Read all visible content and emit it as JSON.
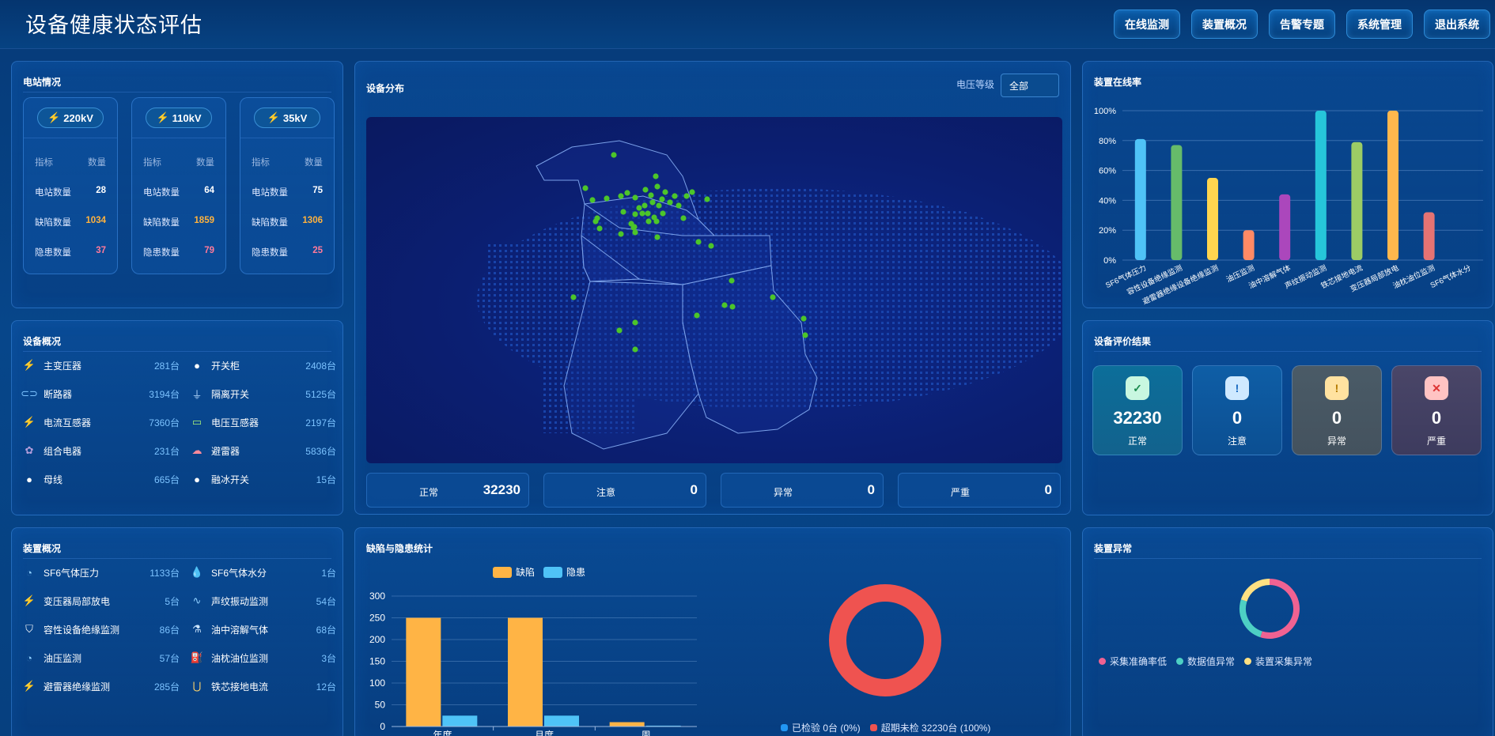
{
  "header": {
    "title": "设备健康状态评估",
    "nav": [
      "在线监测",
      "装置概况",
      "告警专题",
      "系统管理",
      "退出系统"
    ]
  },
  "station": {
    "title": "电站情况",
    "header_k": "指标",
    "header_v": "数量",
    "cards": [
      {
        "level": "220kV",
        "rows": [
          {
            "k": "电站数量",
            "v": "28"
          },
          {
            "k": "缺陷数量",
            "v": "1034"
          },
          {
            "k": "隐患数量",
            "v": "37"
          }
        ]
      },
      {
        "level": "110kV",
        "rows": [
          {
            "k": "电站数量",
            "v": "64"
          },
          {
            "k": "缺陷数量",
            "v": "1859"
          },
          {
            "k": "隐患数量",
            "v": "79"
          }
        ]
      },
      {
        "level": "35kV",
        "rows": [
          {
            "k": "电站数量",
            "v": "75"
          },
          {
            "k": "缺陷数量",
            "v": "1306"
          },
          {
            "k": "隐患数量",
            "v": "25"
          }
        ]
      }
    ]
  },
  "equipment": {
    "title": "设备概况",
    "items": [
      {
        "icon": "bolt-icon",
        "name": "主变压器",
        "count": "281台"
      },
      {
        "icon": "circle-icon",
        "name": "开关柜",
        "count": "2408台"
      },
      {
        "icon": "toggle-icon",
        "name": "断路器",
        "count": "3194台"
      },
      {
        "icon": "plug-icon",
        "name": "隔离开关",
        "count": "5125台"
      },
      {
        "icon": "bolt-icon",
        "name": "电流互感器",
        "count": "7360台"
      },
      {
        "icon": "battery-icon",
        "name": "电压互感器",
        "count": "2197台"
      },
      {
        "icon": "cluster-icon",
        "name": "组合电器",
        "count": "231台"
      },
      {
        "icon": "cloud-bolt-icon",
        "name": "避雷器",
        "count": "5836台"
      },
      {
        "icon": "circle-icon",
        "name": "母线",
        "count": "665台"
      },
      {
        "icon": "circle-icon",
        "name": "融冰开关",
        "count": "15台"
      }
    ]
  },
  "devices": {
    "title": "装置概况",
    "items": [
      {
        "icon": "gauge-icon",
        "name": "SF6气体压力",
        "count": "1133台"
      },
      {
        "icon": "droplet-icon",
        "name": "SF6气体水分",
        "count": "1台"
      },
      {
        "icon": "bolt-icon",
        "name": "变压器局部放电",
        "count": "5台"
      },
      {
        "icon": "wave-icon",
        "name": "声纹振动监测",
        "count": "54台"
      },
      {
        "icon": "shield-icon",
        "name": "容性设备绝缘监测",
        "count": "86台"
      },
      {
        "icon": "flask-icon",
        "name": "油中溶解气体",
        "count": "68台"
      },
      {
        "icon": "gauge-icon",
        "name": "油压监测",
        "count": "57台"
      },
      {
        "icon": "oil-can-icon",
        "name": "油枕油位监测",
        "count": "3台"
      },
      {
        "icon": "bolt-icon",
        "name": "避雷器绝缘监测",
        "count": "285台"
      },
      {
        "icon": "magnet-icon",
        "name": "铁芯接地电流",
        "count": "12台"
      }
    ]
  },
  "distribution": {
    "title": "设备分布",
    "voltage_label": "电压等级",
    "voltage_value": "全部",
    "stats": [
      {
        "label": "正常",
        "value": "32230"
      },
      {
        "label": "注意",
        "value": "0"
      },
      {
        "label": "异常",
        "value": "0"
      },
      {
        "label": "严重",
        "value": "0"
      }
    ]
  },
  "online_rate": {
    "title": "装置在线率"
  },
  "evaluation": {
    "title": "设备评价结果",
    "cards": [
      {
        "symbol": "✓",
        "value": "32230",
        "label": "正常"
      },
      {
        "symbol": "!",
        "value": "0",
        "label": "注意"
      },
      {
        "symbol": "!",
        "value": "0",
        "label": "异常"
      },
      {
        "symbol": "✕",
        "value": "0",
        "label": "严重"
      }
    ]
  },
  "defects": {
    "title": "缺陷与隐患统计",
    "inspect_legend": [
      "已检验  0台 (0%)",
      "超期未检  32230台 (100%)"
    ]
  },
  "anomaly": {
    "title": "装置异常",
    "legend": [
      "采集准确率低",
      "数据值异常",
      "装置采集异常"
    ]
  },
  "chart_data": [
    {
      "type": "bar",
      "categories": [
        "SF6气体压力",
        "容性设备绝缘监测",
        "避雷器绝缘设备绝缘监测",
        "油压监测",
        "油中溶解气体",
        "声纹振动监测",
        "铁芯接地电流",
        "变压器局部放电",
        "油枕油位监测",
        "SF6气体水分"
      ],
      "values": [
        81,
        77,
        55,
        20,
        44,
        100,
        79,
        100,
        32,
        0
      ],
      "colors": [
        "#4fc3f7",
        "#66bb6a",
        "#ffd54f",
        "#ff8a65",
        "#ab47bc",
        "#26c6da",
        "#9ccc65",
        "#ffb74d",
        "#e57373",
        "#90a4ae"
      ],
      "yticks": [
        "0%",
        "20%",
        "40%",
        "60%",
        "80%",
        "100%"
      ],
      "ylim": [
        0,
        100
      ]
    },
    {
      "type": "bar",
      "categories": [
        "年度",
        "月度",
        "周"
      ],
      "series": [
        {
          "name": "缺陷",
          "values": [
            250,
            250,
            10
          ],
          "color": "#ffb445"
        },
        {
          "name": "隐患",
          "values": [
            25,
            25,
            2
          ],
          "color": "#4fc3f7"
        }
      ],
      "yticks": [
        "0",
        "50",
        "100",
        "150",
        "200",
        "250",
        "300"
      ],
      "ylim": [
        0,
        300
      ]
    },
    {
      "type": "pie",
      "labels": [
        "已检验",
        "超期未检"
      ],
      "values": [
        0,
        32230
      ],
      "colors": [
        "#2196f3",
        "#ef5350"
      ]
    },
    {
      "type": "pie",
      "labels": [
        "采集准确率低",
        "数据值异常",
        "装置采集异常"
      ],
      "values": [
        55,
        25,
        20
      ],
      "colors": [
        "#f06292",
        "#4dd0c4",
        "#ffe082"
      ]
    }
  ]
}
